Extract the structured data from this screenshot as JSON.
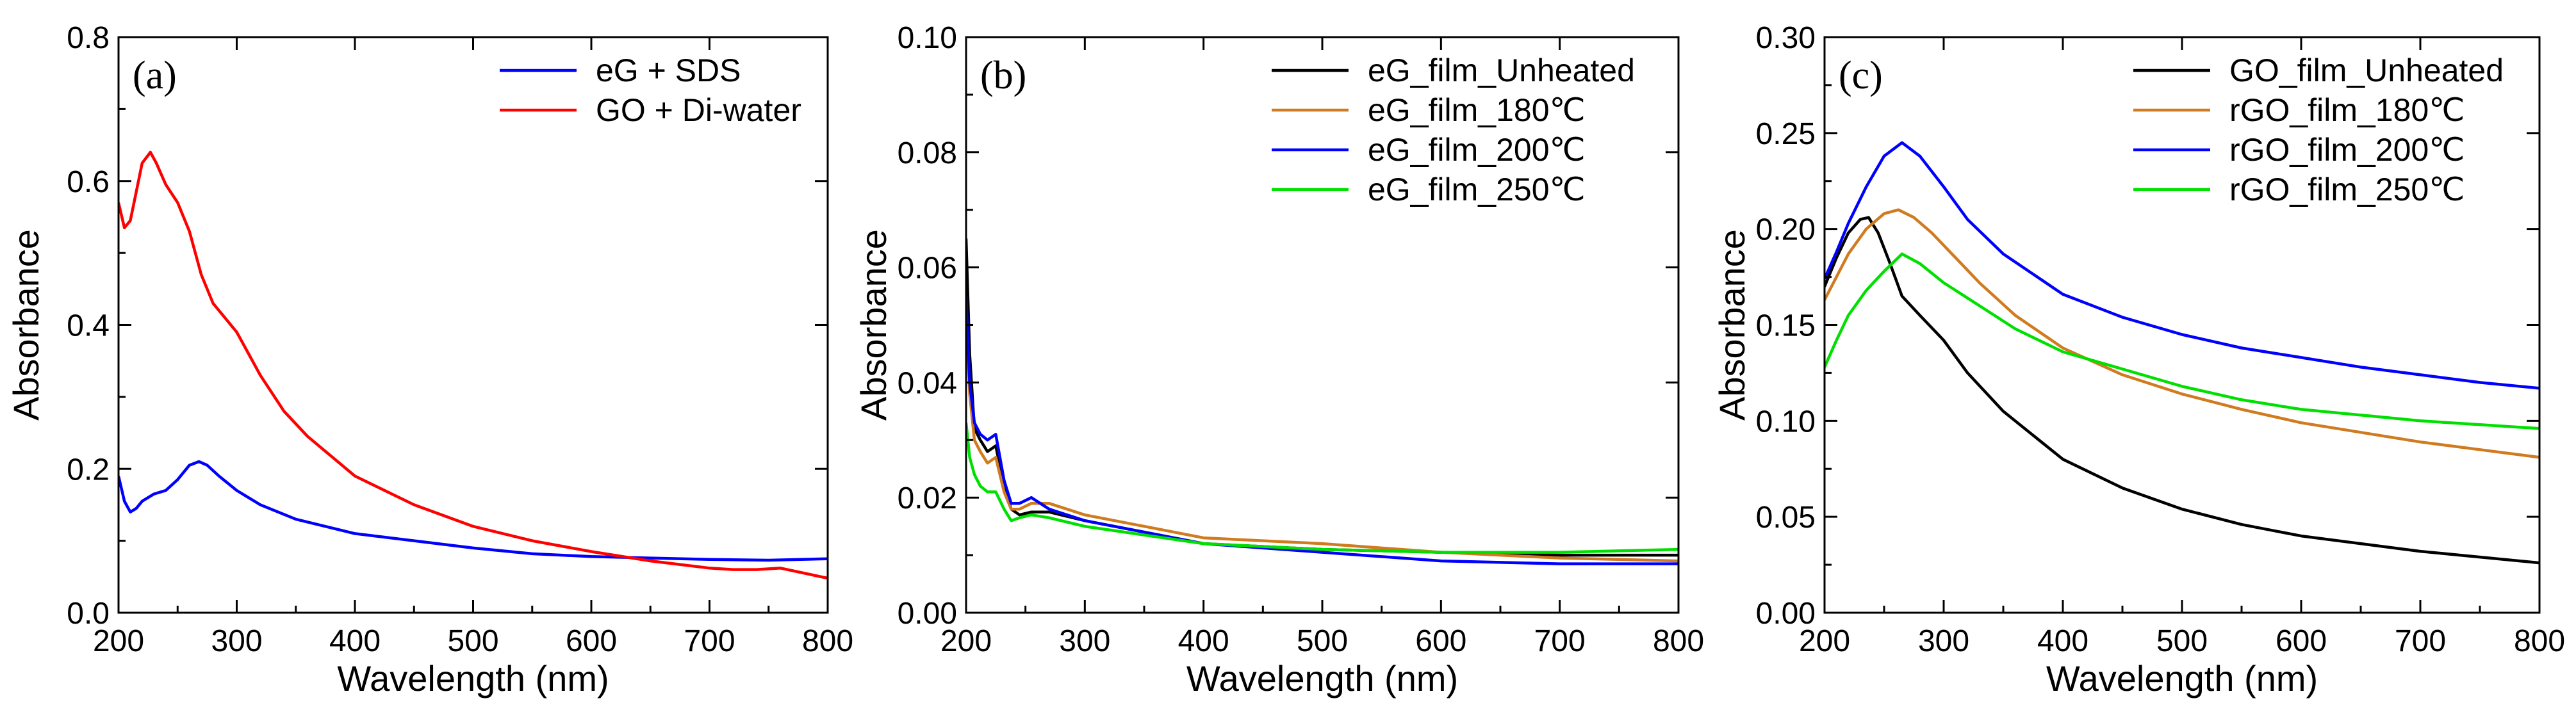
{
  "chart_data": [
    {
      "type": "line",
      "panel_label": "(a)",
      "xlabel": "Wavelength (nm)",
      "ylabel": "Absorbance",
      "xlim": [
        200,
        800
      ],
      "ylim": [
        0,
        0.8
      ],
      "xticks": [
        200,
        300,
        400,
        500,
        600,
        700,
        800
      ],
      "xtick_labels": [
        "200",
        "300",
        "400",
        "500",
        "600",
        "700",
        "800"
      ],
      "yticks": [
        0,
        0.2,
        0.4,
        0.6,
        0.8
      ],
      "ytick_labels": [
        "0.0",
        "0.2",
        "0.4",
        "0.6",
        "0.8"
      ],
      "legend_position": "top-right",
      "series": [
        {
          "name": "eG + SDS",
          "color": "#0000ff",
          "x": [
            200,
            205,
            210,
            215,
            220,
            230,
            240,
            250,
            260,
            268,
            275,
            285,
            300,
            320,
            350,
            400,
            450,
            500,
            550,
            600,
            650,
            700,
            750,
            800
          ],
          "y": [
            0.19,
            0.155,
            0.14,
            0.145,
            0.155,
            0.165,
            0.17,
            0.185,
            0.205,
            0.21,
            0.205,
            0.19,
            0.17,
            0.15,
            0.13,
            0.11,
            0.1,
            0.09,
            0.082,
            0.078,
            0.076,
            0.074,
            0.073,
            0.075
          ]
        },
        {
          "name": "GO + Di-water",
          "color": "#ff0000",
          "x": [
            200,
            205,
            210,
            215,
            220,
            227,
            232,
            240,
            250,
            260,
            270,
            280,
            300,
            320,
            340,
            360,
            400,
            450,
            500,
            550,
            600,
            650,
            700,
            720,
            740,
            760,
            780,
            800
          ],
          "y": [
            0.57,
            0.535,
            0.545,
            0.585,
            0.625,
            0.64,
            0.625,
            0.595,
            0.57,
            0.53,
            0.47,
            0.43,
            0.39,
            0.33,
            0.28,
            0.245,
            0.19,
            0.15,
            0.12,
            0.1,
            0.085,
            0.072,
            0.062,
            0.06,
            0.06,
            0.062,
            0.055,
            0.048
          ]
        }
      ]
    },
    {
      "type": "line",
      "panel_label": "(b)",
      "xlabel": "Wavelength (nm)",
      "ylabel": "Absorbance",
      "xlim": [
        200,
        800
      ],
      "ylim": [
        0,
        0.1
      ],
      "xticks": [
        200,
        300,
        400,
        500,
        600,
        700,
        800
      ],
      "xtick_labels": [
        "200",
        "300",
        "400",
        "500",
        "600",
        "700",
        "800"
      ],
      "yticks": [
        0,
        0.02,
        0.04,
        0.06,
        0.08,
        0.1
      ],
      "ytick_labels": [
        "0.00",
        "0.02",
        "0.04",
        "0.06",
        "0.08",
        "0.10"
      ],
      "legend_position": "top-right",
      "series": [
        {
          "name": "eG_film_Unheated",
          "color": "#000000",
          "x": [
            200,
            203,
            207,
            212,
            218,
            225,
            232,
            238,
            245,
            255,
            270,
            300,
            350,
            400,
            500,
            600,
            700,
            800
          ],
          "y": [
            0.065,
            0.045,
            0.032,
            0.03,
            0.028,
            0.029,
            0.022,
            0.018,
            0.017,
            0.0175,
            0.0175,
            0.016,
            0.014,
            0.012,
            0.011,
            0.0105,
            0.01,
            0.01
          ]
        },
        {
          "name": "eG_film_180℃",
          "color": "#d07b1f",
          "x": [
            200,
            203,
            207,
            212,
            218,
            225,
            232,
            238,
            245,
            255,
            270,
            300,
            350,
            400,
            500,
            600,
            700,
            800
          ],
          "y": [
            0.052,
            0.038,
            0.03,
            0.028,
            0.026,
            0.027,
            0.021,
            0.018,
            0.018,
            0.019,
            0.019,
            0.017,
            0.015,
            0.013,
            0.012,
            0.0105,
            0.0095,
            0.009
          ]
        },
        {
          "name": "eG_film_200℃",
          "color": "#0000ff",
          "x": [
            200,
            203,
            207,
            212,
            218,
            225,
            232,
            238,
            245,
            255,
            270,
            300,
            350,
            400,
            500,
            600,
            700,
            800
          ],
          "y": [
            0.055,
            0.04,
            0.033,
            0.031,
            0.03,
            0.031,
            0.023,
            0.019,
            0.019,
            0.02,
            0.018,
            0.016,
            0.014,
            0.012,
            0.0105,
            0.009,
            0.0085,
            0.0085
          ]
        },
        {
          "name": "eG_film_250℃",
          "color": "#00e000",
          "x": [
            200,
            203,
            207,
            212,
            218,
            225,
            232,
            238,
            245,
            255,
            270,
            300,
            350,
            400,
            500,
            600,
            700,
            800
          ],
          "y": [
            0.033,
            0.027,
            0.024,
            0.022,
            0.021,
            0.021,
            0.018,
            0.016,
            0.0165,
            0.017,
            0.0165,
            0.015,
            0.0135,
            0.012,
            0.011,
            0.0105,
            0.0105,
            0.011
          ]
        }
      ]
    },
    {
      "type": "line",
      "panel_label": "(c)",
      "xlabel": "Wavelength (nm)",
      "ylabel": "Absorbance",
      "xlim": [
        200,
        800
      ],
      "ylim": [
        0,
        0.3
      ],
      "xticks": [
        200,
        300,
        400,
        500,
        600,
        700,
        800
      ],
      "xtick_labels": [
        "200",
        "300",
        "400",
        "500",
        "600",
        "700",
        "800"
      ],
      "yticks": [
        0,
        0.05,
        0.1,
        0.15,
        0.2,
        0.25,
        0.3
      ],
      "ytick_labels": [
        "0.00",
        "0.05",
        "0.10",
        "0.15",
        "0.20",
        "0.25",
        "0.30"
      ],
      "legend_position": "top-right",
      "series": [
        {
          "name": "GO_film_Unheated",
          "color": "#000000",
          "x": [
            200,
            210,
            220,
            230,
            237,
            245,
            255,
            265,
            280,
            300,
            320,
            350,
            400,
            450,
            500,
            550,
            600,
            650,
            700,
            750,
            800
          ],
          "y": [
            0.17,
            0.185,
            0.198,
            0.205,
            0.206,
            0.198,
            0.182,
            0.165,
            0.155,
            0.142,
            0.125,
            0.105,
            0.08,
            0.065,
            0.054,
            0.046,
            0.04,
            0.036,
            0.032,
            0.029,
            0.026
          ]
        },
        {
          "name": "rGO_film_180℃",
          "color": "#d07b1f",
          "x": [
            200,
            210,
            220,
            235,
            250,
            262,
            275,
            290,
            310,
            330,
            360,
            400,
            450,
            500,
            550,
            600,
            650,
            700,
            750,
            800
          ],
          "y": [
            0.163,
            0.175,
            0.187,
            0.2,
            0.208,
            0.21,
            0.206,
            0.198,
            0.185,
            0.172,
            0.155,
            0.138,
            0.124,
            0.114,
            0.106,
            0.099,
            0.094,
            0.089,
            0.085,
            0.081
          ]
        },
        {
          "name": "rGO_film_200℃",
          "color": "#0000ff",
          "x": [
            200,
            210,
            220,
            235,
            250,
            265,
            280,
            300,
            320,
            350,
            400,
            450,
            500,
            550,
            600,
            650,
            700,
            750,
            800
          ],
          "y": [
            0.174,
            0.188,
            0.203,
            0.222,
            0.238,
            0.245,
            0.238,
            0.222,
            0.205,
            0.187,
            0.166,
            0.154,
            0.145,
            0.138,
            0.133,
            0.128,
            0.124,
            0.12,
            0.117
          ]
        },
        {
          "name": "rGO_film_250℃",
          "color": "#00e000",
          "x": [
            200,
            210,
            220,
            235,
            250,
            265,
            280,
            300,
            330,
            360,
            400,
            450,
            500,
            550,
            600,
            650,
            700,
            750,
            800
          ],
          "y": [
            0.128,
            0.142,
            0.155,
            0.168,
            0.178,
            0.187,
            0.182,
            0.172,
            0.16,
            0.148,
            0.136,
            0.127,
            0.118,
            0.111,
            0.106,
            0.103,
            0.1,
            0.098,
            0.096
          ]
        }
      ]
    }
  ]
}
